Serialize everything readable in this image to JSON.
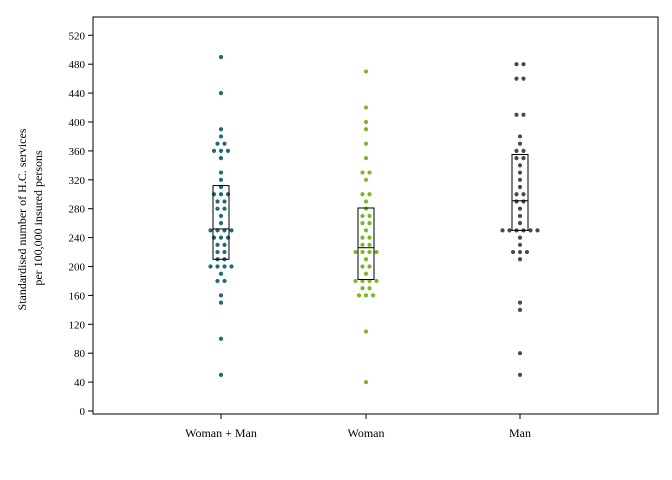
{
  "chart_data": {
    "type": "scatter",
    "title": "",
    "xlabel": "",
    "ylabel": [
      "Standardised number of H.C. services",
      "per 100,000 insured persons"
    ],
    "ylim": [
      0,
      540
    ],
    "yticks": [
      0,
      40,
      80,
      120,
      160,
      200,
      240,
      280,
      320,
      360,
      400,
      440,
      480,
      520
    ],
    "grid": false,
    "legend": "none",
    "categories": [
      "Woman + Man",
      "Woman",
      "Man"
    ],
    "series": [
      {
        "category": "Woman + Man",
        "color": "#1f6b74",
        "values": [
          490,
          440,
          390,
          380,
          370,
          370,
          360,
          360,
          360,
          350,
          330,
          320,
          310,
          300,
          300,
          300,
          290,
          290,
          280,
          280,
          270,
          260,
          250,
          250,
          250,
          250,
          240,
          240,
          240,
          230,
          230,
          220,
          220,
          210,
          210,
          200,
          200,
          200,
          200,
          190,
          180,
          180,
          160,
          150,
          100,
          50
        ],
        "box": {
          "q1": 210,
          "median": 252,
          "q3": 312
        }
      },
      {
        "category": "Woman",
        "color": "#7ab827",
        "values": [
          470,
          420,
          400,
          390,
          370,
          350,
          330,
          330,
          320,
          300,
          300,
          290,
          280,
          270,
          270,
          260,
          260,
          250,
          240,
          240,
          230,
          230,
          220,
          220,
          220,
          220,
          210,
          200,
          200,
          190,
          180,
          180,
          180,
          180,
          170,
          170,
          160,
          160,
          160,
          110,
          40
        ],
        "box": {
          "q1": 182,
          "median": 226,
          "q3": 281
        }
      },
      {
        "category": "Man",
        "color": "#4a4a4a",
        "values": [
          480,
          480,
          460,
          460,
          410,
          410,
          380,
          370,
          360,
          360,
          350,
          350,
          340,
          330,
          320,
          310,
          300,
          300,
          290,
          290,
          280,
          270,
          260,
          250,
          250,
          250,
          250,
          250,
          250,
          240,
          230,
          220,
          220,
          220,
          210,
          150,
          140,
          80,
          50
        ],
        "box": {
          "q1": 250,
          "median": 291,
          "q3": 355
        }
      }
    ]
  }
}
